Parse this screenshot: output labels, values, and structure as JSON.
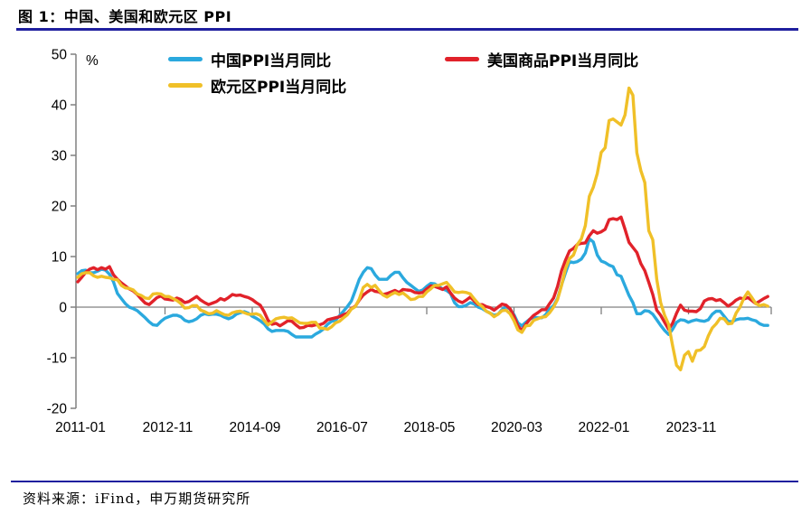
{
  "header": {
    "title": "图 1：中国、美国和欧元区 PPI"
  },
  "footer": {
    "source": "资料来源：iFind，申万期货研究所"
  },
  "chart_data": {
    "type": "line",
    "title": "中国、美国和欧元区 PPI",
    "unit_label": "%",
    "x_start": "2011-01",
    "x_frequency": "monthly",
    "x_end": "2025-07",
    "xticks": [
      "2011-01",
      "2012-11",
      "2014-09",
      "2016-07",
      "2018-05",
      "2020-03",
      "2022-01",
      "2023-11"
    ],
    "yticks": [
      50,
      40,
      30,
      20,
      10,
      0,
      -10,
      -20
    ],
    "ylim": [
      -20,
      50
    ],
    "grid": "zero-line-only",
    "legend_position": "top",
    "axis_color": "#808080",
    "series": [
      {
        "name": "中国PPI当月同比",
        "color": "#2BA9DE",
        "values": [
          6.6,
          7.2,
          7.3,
          6.8,
          6.8,
          7.1,
          7.5,
          7.3,
          6.5,
          5.0,
          2.7,
          1.7,
          0.7,
          0.0,
          -0.3,
          -0.7,
          -1.4,
          -2.1,
          -2.9,
          -3.5,
          -3.6,
          -2.8,
          -2.2,
          -1.9,
          -1.6,
          -1.6,
          -1.9,
          -2.6,
          -2.9,
          -2.7,
          -2.3,
          -1.6,
          -1.3,
          -1.5,
          -1.4,
          -1.4,
          -1.6,
          -2.0,
          -2.3,
          -2.0,
          -1.4,
          -1.1,
          -0.9,
          -1.2,
          -1.8,
          -2.2,
          -2.7,
          -3.3,
          -4.3,
          -4.8,
          -4.6,
          -4.6,
          -4.6,
          -4.8,
          -5.4,
          -5.9,
          -5.9,
          -5.9,
          -5.9,
          -5.9,
          -5.3,
          -4.9,
          -4.3,
          -3.4,
          -2.8,
          -2.6,
          -1.7,
          -0.8,
          0.1,
          1.2,
          3.3,
          5.5,
          6.9,
          7.8,
          7.6,
          6.4,
          5.5,
          5.5,
          5.5,
          6.3,
          6.9,
          6.9,
          5.8,
          4.9,
          4.3,
          3.7,
          3.1,
          3.4,
          4.1,
          4.7,
          4.6,
          4.1,
          3.6,
          3.3,
          2.7,
          0.9,
          0.1,
          0.1,
          0.4,
          0.9,
          0.6,
          0.0,
          -0.3,
          -0.8,
          -1.2,
          -1.6,
          -1.4,
          -0.5,
          0.1,
          -0.4,
          -1.5,
          -3.1,
          -3.7,
          -3.0,
          -2.4,
          -2.0,
          -2.1,
          -2.1,
          -1.5,
          -0.4,
          0.3,
          1.7,
          4.4,
          6.8,
          9.0,
          8.8,
          9.0,
          9.5,
          10.7,
          13.5,
          12.9,
          10.3,
          9.1,
          8.8,
          8.3,
          8.0,
          6.4,
          6.1,
          4.2,
          2.3,
          0.9,
          -1.3,
          -1.3,
          -0.7,
          -0.8,
          -1.4,
          -2.5,
          -3.6,
          -4.6,
          -5.4,
          -4.4,
          -3.0,
          -2.5,
          -2.6,
          -3.0,
          -2.7,
          -2.5,
          -2.7,
          -2.8,
          -2.5,
          -1.4,
          -0.8,
          -0.8,
          -1.8,
          -2.8,
          -2.9,
          -2.5,
          -2.3,
          -2.3,
          -2.2,
          -2.5,
          -2.7,
          -3.3,
          -3.6,
          -3.6
        ]
      },
      {
        "name": "美国商品PPI当月同比",
        "color": "#E1222A",
        "values": [
          5.0,
          5.9,
          6.9,
          7.5,
          7.8,
          7.4,
          7.8,
          7.5,
          8.0,
          6.4,
          5.5,
          4.8,
          4.2,
          3.6,
          3.2,
          2.5,
          1.6,
          0.8,
          0.5,
          1.2,
          1.9,
          2.2,
          1.6,
          1.5,
          1.4,
          1.8,
          1.5,
          0.9,
          1.1,
          1.6,
          2.1,
          1.4,
          0.9,
          0.5,
          0.8,
          1.1,
          1.7,
          1.4,
          1.9,
          2.5,
          2.3,
          2.4,
          2.1,
          1.9,
          1.5,
          0.9,
          0.4,
          -0.9,
          -2.6,
          -3.4,
          -3.2,
          -3.7,
          -3.2,
          -2.7,
          -2.8,
          -3.5,
          -4.1,
          -4.0,
          -3.6,
          -3.7,
          -3.5,
          -3.5,
          -3.2,
          -2.5,
          -2.3,
          -2.1,
          -1.9,
          -1.5,
          -1.2,
          -0.3,
          0.2,
          1.4,
          2.4,
          3.0,
          3.5,
          3.1,
          3.0,
          2.5,
          2.7,
          3.0,
          3.3,
          2.9,
          3.5,
          3.4,
          3.3,
          2.9,
          2.8,
          2.9,
          3.6,
          4.2,
          4.1,
          3.8,
          3.5,
          4.0,
          2.8,
          1.8,
          1.2,
          0.9,
          1.4,
          2.0,
          1.2,
          0.5,
          0.5,
          0.1,
          -0.1,
          -0.6,
          0.0,
          0.6,
          0.4,
          -0.3,
          -1.8,
          -3.7,
          -4.6,
          -3.4,
          -2.4,
          -1.6,
          -1.1,
          -0.5,
          -0.5,
          0.7,
          1.8,
          4.1,
          7.2,
          9.3,
          11.1,
          11.6,
          12.4,
          12.6,
          12.7,
          14.1,
          15.1,
          14.6,
          14.9,
          15.4,
          17.3,
          17.5,
          17.3,
          17.8,
          15.4,
          12.8,
          11.8,
          10.8,
          8.6,
          7.2,
          4.9,
          2.5,
          -0.6,
          -1.6,
          -3.0,
          -4.4,
          -3.2,
          -1.2,
          0.4,
          -0.6,
          -0.8,
          -0.8,
          -0.9,
          -0.3,
          1.2,
          1.6,
          1.7,
          1.3,
          1.5,
          0.9,
          0.2,
          0.7,
          1.4,
          1.8,
          1.6,
          1.9,
          1.3,
          0.7,
          1.2,
          1.7,
          2.1
        ]
      },
      {
        "name": "欧元区PPI当月同比",
        "color": "#F0C028",
        "values": [
          5.9,
          6.6,
          6.8,
          6.8,
          6.2,
          5.9,
          6.1,
          5.9,
          5.8,
          5.5,
          5.4,
          4.3,
          3.8,
          3.7,
          3.4,
          2.6,
          2.3,
          1.8,
          1.7,
          2.6,
          2.7,
          2.6,
          2.1,
          2.1,
          1.7,
          1.3,
          0.7,
          -0.2,
          -0.1,
          0.3,
          0.3,
          -0.6,
          -0.9,
          -1.3,
          -1.2,
          -0.7,
          -1.1,
          -1.5,
          -1.6,
          -1.1,
          -0.9,
          -0.8,
          -1.1,
          -1.4,
          -1.4,
          -1.3,
          -1.6,
          -2.6,
          -3.5,
          -2.9,
          -2.3,
          -2.1,
          -2.0,
          -2.2,
          -2.1,
          -2.6,
          -3.1,
          -3.2,
          -3.2,
          -3.0,
          -3.0,
          -4.1,
          -4.2,
          -4.4,
          -3.9,
          -3.1,
          -2.8,
          -2.1,
          -1.5,
          -0.4,
          0.1,
          1.6,
          3.9,
          4.5,
          3.9,
          4.3,
          3.3,
          2.4,
          2.0,
          2.5,
          2.9,
          2.5,
          2.8,
          2.2,
          1.5,
          1.6,
          2.1,
          2.1,
          3.0,
          3.6,
          4.3,
          4.3,
          4.6,
          4.9,
          4.0,
          3.0,
          2.9,
          3.0,
          2.9,
          2.6,
          1.6,
          0.7,
          0.1,
          -0.8,
          -1.2,
          -1.9,
          -1.4,
          -0.7,
          -0.6,
          -1.3,
          -2.7,
          -4.5,
          -5.0,
          -3.7,
          -3.6,
          -2.6,
          -2.3,
          -2.0,
          -1.9,
          -1.1,
          0.0,
          1.5,
          4.3,
          7.6,
          9.6,
          10.3,
          12.4,
          13.5,
          16.1,
          21.9,
          23.7,
          26.4,
          30.6,
          31.5,
          36.9,
          37.2,
          36.6,
          36.0,
          38.0,
          43.3,
          41.9,
          30.5,
          27.0,
          24.6,
          15.1,
          13.3,
          5.5,
          0.9,
          -1.6,
          -3.4,
          -7.6,
          -11.5,
          -12.4,
          -9.5,
          -8.8,
          -10.7,
          -8.6,
          -8.5,
          -7.8,
          -5.7,
          -4.1,
          -3.3,
          -2.2,
          -2.3,
          -3.3,
          -3.2,
          -1.2,
          0.0,
          1.8,
          3.0,
          1.9,
          0.7,
          0.3,
          0.5,
          0.2
        ]
      }
    ]
  }
}
